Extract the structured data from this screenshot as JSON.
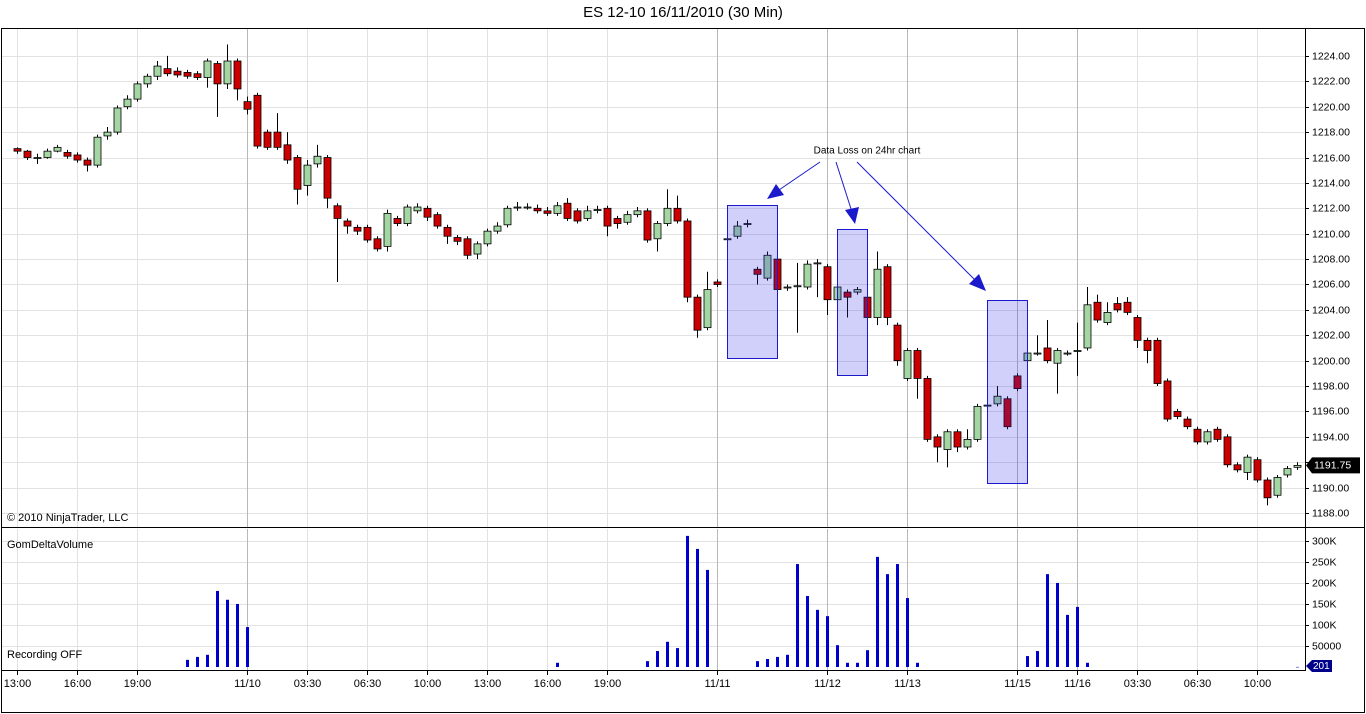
{
  "chart_data": [
    {
      "type": "candlestick",
      "title": "ES 12-10  16/11/2010 (30 Min)",
      "annotation": "Data Loss on 24hr chart",
      "copyright": "© 2010 NinjaTrader, LLC",
      "up_color": "#a4d6a4",
      "down_color": "#cc0000",
      "grid": true,
      "categories": [
        "13:00",
        null,
        null,
        null,
        null,
        null,
        "16:00",
        null,
        null,
        null,
        null,
        null,
        "19:00",
        null,
        null,
        null,
        null,
        null,
        null,
        null,
        null,
        null,
        null,
        "11/10",
        null,
        null,
        null,
        null,
        null,
        "03:30",
        null,
        null,
        null,
        null,
        null,
        "06:30",
        null,
        null,
        null,
        null,
        null,
        "10:00",
        null,
        null,
        null,
        null,
        null,
        "13:00",
        null,
        null,
        null,
        null,
        null,
        "16:00",
        null,
        null,
        null,
        null,
        null,
        "19:00",
        null,
        null,
        null,
        null,
        null,
        null,
        null,
        null,
        null,
        null,
        "11/11",
        null,
        null,
        null,
        null,
        null,
        null,
        null,
        null,
        null,
        null,
        "11/12",
        null,
        null,
        null,
        null,
        null,
        null,
        null,
        "11/13",
        null,
        null,
        null,
        null,
        null,
        null,
        null,
        null,
        null,
        null,
        "11/15",
        null,
        null,
        null,
        null,
        null,
        "11/16",
        null,
        null,
        null,
        null,
        null,
        "03:30",
        null,
        null,
        null,
        null,
        null,
        "06:30",
        null,
        null,
        null,
        null,
        null,
        "10:00",
        null,
        null,
        null,
        null
      ],
      "open": [
        1216.7,
        1216.5,
        1216.0,
        1216.0,
        1216.5,
        1216.4,
        1216.2,
        1215.8,
        1215.4,
        1217.7,
        1218.0,
        1220.0,
        1220.6,
        1221.8,
        1222.4,
        1223.0,
        1222.8,
        1222.7,
        1222.6,
        1222.3,
        1223.4,
        1221.8,
        1223.6,
        1220.4,
        1220.9,
        1218.0,
        1218.0,
        1217.0,
        1216.0,
        1213.8,
        1215.5,
        1216.0,
        1212.2,
        1211.0,
        1210.5,
        1210.5,
        1209.6,
        1209.0,
        1211.2,
        1210.8,
        1211.8,
        1212.0,
        1211.5,
        1210.5,
        1209.7,
        1209.6,
        1208.4,
        1209.2,
        1210.2,
        1210.7,
        1212.1,
        1212.1,
        1212.0,
        1211.8,
        1211.6,
        1212.4,
        1211.8,
        1211.2,
        1211.9,
        1212.0,
        1211.2,
        1210.9,
        1211.5,
        1211.8,
        1209.6,
        1210.8,
        1212.0,
        1211.0,
        1205.0,
        1202.6,
        1206.2,
        1209.6,
        1209.8,
        1210.8,
        1207.2,
        1206.5,
        1208.0,
        1205.8,
        1205.9,
        1205.8,
        1207.7,
        1207.4,
        1204.8,
        1205.4,
        1205.4,
        1205.0,
        1203.4,
        1207.4,
        1202.8,
        1198.6,
        1200.8,
        1198.6,
        1194.0,
        1193.0,
        1194.4,
        1193.2,
        1193.8,
        1196.5,
        1196.6,
        1197.0,
        1198.8,
        1200.0,
        1200.6,
        1201.0,
        1199.8,
        1200.6,
        1200.8,
        1201.0,
        1204.6,
        1203.0,
        1204.5,
        1204.6,
        1203.4,
        1201.6,
        1201.6,
        1198.4,
        1196.0,
        1195.4,
        1194.6,
        1193.6,
        1194.6,
        1194.0,
        1191.8,
        1191.2,
        1192.2,
        1190.6,
        1189.4,
        1191.0,
        1191.6
      ],
      "high": [
        1216.8,
        1216.6,
        1216.3,
        1216.7,
        1217.0,
        1216.6,
        1216.4,
        1216.0,
        1217.8,
        1218.4,
        1220.1,
        1220.9,
        1222.0,
        1222.6,
        1223.6,
        1224.0,
        1223.1,
        1222.9,
        1222.8,
        1223.8,
        1223.6,
        1224.9,
        1223.8,
        1220.8,
        1221.1,
        1218.2,
        1219.5,
        1218.0,
        1216.2,
        1215.8,
        1217.0,
        1216.2,
        1212.4,
        1211.2,
        1210.7,
        1210.7,
        1209.8,
        1211.9,
        1211.4,
        1212.3,
        1212.4,
        1212.2,
        1211.7,
        1210.7,
        1209.9,
        1209.8,
        1209.4,
        1210.4,
        1210.9,
        1212.2,
        1212.5,
        1212.4,
        1212.3,
        1212.1,
        1212.5,
        1212.8,
        1212.0,
        1212.2,
        1212.2,
        1212.2,
        1211.4,
        1211.8,
        1212.1,
        1212.0,
        1211.0,
        1213.5,
        1213.0,
        1211.2,
        1205.2,
        1207.0,
        1206.4,
        1209.8,
        1211.0,
        1211.1,
        1207.4,
        1208.6,
        1208.2,
        1206.0,
        1207.7,
        1207.9,
        1208.0,
        1207.6,
        1206.1,
        1205.6,
        1205.8,
        1205.2,
        1208.6,
        1207.6,
        1203.0,
        1201.0,
        1201.0,
        1198.8,
        1194.2,
        1194.6,
        1194.6,
        1194.6,
        1196.6,
        1196.7,
        1198.0,
        1197.2,
        1199.0,
        1200.8,
        1202.0,
        1203.2,
        1201.0,
        1200.8,
        1203.0,
        1205.8,
        1205.2,
        1204.6,
        1205.0,
        1205.0,
        1203.6,
        1201.8,
        1201.8,
        1198.6,
        1196.2,
        1195.6,
        1194.8,
        1194.6,
        1194.8,
        1194.2,
        1192.0,
        1192.6,
        1192.4,
        1190.8,
        1191.0,
        1191.7,
        1192.0
      ],
      "low": [
        1216.3,
        1215.8,
        1215.5,
        1215.9,
        1216.4,
        1215.9,
        1215.6,
        1214.9,
        1215.2,
        1217.4,
        1217.8,
        1219.8,
        1220.4,
        1221.5,
        1222.1,
        1222.4,
        1222.3,
        1222.2,
        1222.1,
        1221.5,
        1219.2,
        1221.4,
        1220.5,
        1219.4,
        1216.7,
        1216.6,
        1216.6,
        1215.5,
        1212.3,
        1213.0,
        1215.2,
        1212.0,
        1206.2,
        1210.0,
        1209.9,
        1209.3,
        1208.6,
        1208.6,
        1210.6,
        1210.6,
        1211.6,
        1211.0,
        1210.4,
        1209.2,
        1209.1,
        1208.0,
        1208.0,
        1209.0,
        1210.0,
        1210.5,
        1211.8,
        1211.9,
        1211.6,
        1211.4,
        1211.4,
        1211.0,
        1210.8,
        1211.0,
        1211.6,
        1209.8,
        1210.4,
        1210.7,
        1211.3,
        1209.3,
        1208.6,
        1210.6,
        1210.8,
        1204.6,
        1201.8,
        1202.4,
        1205.8,
        1209.4,
        1209.6,
        1210.5,
        1206.0,
        1206.3,
        1205.0,
        1205.5,
        1202.2,
        1205.6,
        1205.0,
        1203.6,
        1204.4,
        1203.4,
        1205.2,
        1203.0,
        1202.8,
        1202.8,
        1199.6,
        1198.4,
        1197.0,
        1193.6,
        1192.0,
        1191.6,
        1192.8,
        1193.0,
        1193.6,
        1196.3,
        1196.4,
        1194.6,
        1197.6,
        1199.8,
        1200.4,
        1199.8,
        1197.4,
        1200.4,
        1198.8,
        1200.8,
        1203.0,
        1202.8,
        1203.8,
        1203.6,
        1201.0,
        1199.8,
        1198.0,
        1195.2,
        1195.4,
        1194.6,
        1193.4,
        1193.4,
        1193.6,
        1191.6,
        1191.2,
        1190.6,
        1190.4,
        1188.6,
        1189.2,
        1190.8,
        1191.4
      ],
      "close": [
        1216.5,
        1216.0,
        1216.0,
        1216.5,
        1216.8,
        1216.1,
        1215.8,
        1215.4,
        1217.6,
        1218.0,
        1219.9,
        1220.6,
        1221.8,
        1222.4,
        1223.2,
        1222.6,
        1222.5,
        1222.4,
        1222.3,
        1223.6,
        1221.8,
        1223.6,
        1221.4,
        1219.8,
        1216.9,
        1216.8,
        1216.8,
        1215.8,
        1213.5,
        1215.4,
        1216.1,
        1212.8,
        1211.2,
        1210.6,
        1210.2,
        1209.5,
        1208.8,
        1211.6,
        1210.8,
        1212.1,
        1212.1,
        1211.3,
        1210.6,
        1209.8,
        1209.4,
        1208.3,
        1209.2,
        1210.2,
        1210.6,
        1212.0,
        1212.1,
        1212.1,
        1211.8,
        1211.6,
        1212.2,
        1211.2,
        1211.0,
        1211.8,
        1211.9,
        1210.6,
        1210.8,
        1211.5,
        1211.8,
        1209.5,
        1210.8,
        1212.0,
        1211.0,
        1205.0,
        1202.4,
        1205.6,
        1206.0,
        1209.6,
        1210.6,
        1210.8,
        1206.8,
        1208.3,
        1205.6,
        1205.8,
        1205.9,
        1207.6,
        1207.7,
        1204.8,
        1205.8,
        1205.0,
        1205.6,
        1203.4,
        1207.2,
        1203.4,
        1200.0,
        1200.8,
        1198.6,
        1193.8,
        1193.2,
        1194.4,
        1193.2,
        1193.8,
        1196.4,
        1196.5,
        1197.2,
        1194.8,
        1197.8,
        1200.6,
        1200.6,
        1200.0,
        1200.8,
        1200.6,
        1200.8,
        1204.4,
        1203.2,
        1203.8,
        1204.0,
        1203.8,
        1201.6,
        1200.8,
        1198.2,
        1195.4,
        1195.6,
        1194.8,
        1193.6,
        1194.4,
        1193.8,
        1191.8,
        1191.4,
        1192.4,
        1190.6,
        1189.2,
        1190.8,
        1191.5,
        1191.75
      ],
      "ylim": [
        1186.9,
        1226.2
      ],
      "yticks": [
        {
          "value": 1188,
          "label": "1188.00"
        },
        {
          "value": 1190,
          "label": "1190.00"
        },
        {
          "value": 1192,
          "label": "1192.00"
        },
        {
          "value": 1194,
          "label": "1194.00"
        },
        {
          "value": 1196,
          "label": "1196.00"
        },
        {
          "value": 1198,
          "label": "1198.00"
        },
        {
          "value": 1200,
          "label": "1200.00"
        },
        {
          "value": 1202,
          "label": "1202.00"
        },
        {
          "value": 1204,
          "label": "1204.00"
        },
        {
          "value": 1206,
          "label": "1206.00"
        },
        {
          "value": 1208,
          "label": "1208.00"
        },
        {
          "value": 1210,
          "label": "1210.00"
        },
        {
          "value": 1212,
          "label": "1212.00"
        },
        {
          "value": 1214,
          "label": "1214.00"
        },
        {
          "value": 1216,
          "label": "1216.00"
        },
        {
          "value": 1218,
          "label": "1218.00"
        },
        {
          "value": 1220,
          "label": "1220.00"
        },
        {
          "value": 1222,
          "label": "1222.00"
        },
        {
          "value": 1224,
          "label": "1224.00"
        }
      ]
    },
    {
      "type": "bar",
      "title": "GomDeltaVolume",
      "status": "Recording OFF",
      "color": "#0000cc",
      "grid": true,
      "values": [
        null,
        null,
        null,
        null,
        null,
        null,
        null,
        null,
        null,
        null,
        null,
        null,
        null,
        null,
        null,
        null,
        null,
        17000,
        24000,
        29000,
        181000,
        160000,
        150000,
        95000,
        null,
        null,
        null,
        null,
        null,
        null,
        null,
        null,
        null,
        null,
        null,
        null,
        null,
        null,
        null,
        null,
        null,
        null,
        null,
        null,
        null,
        null,
        null,
        null,
        null,
        null,
        null,
        null,
        null,
        null,
        10000,
        null,
        null,
        null,
        null,
        null,
        null,
        null,
        null,
        14000,
        38000,
        60000,
        45000,
        312000,
        281000,
        231000,
        null,
        null,
        null,
        null,
        14000,
        19000,
        24000,
        29000,
        245000,
        169000,
        136000,
        121000,
        52000,
        10000,
        10000,
        40000,
        262000,
        221000,
        245000,
        164000,
        10000,
        null,
        null,
        null,
        null,
        null,
        null,
        null,
        null,
        null,
        null,
        26000,
        38000,
        221000,
        200000,
        124000,
        143000,
        10000,
        null,
        null,
        null,
        null,
        null,
        null,
        null,
        null,
        null,
        null,
        null,
        null,
        null,
        null,
        null,
        null,
        null,
        null,
        null,
        null,
        201
      ],
      "ylim": [
        0,
        326000
      ],
      "yticks": [
        50000,
        {
          "value": 100000,
          "label": "100K"
        },
        {
          "value": 150000,
          "label": "150K"
        },
        {
          "value": 200000,
          "label": "200K"
        },
        {
          "value": 250000,
          "label": "250K"
        },
        {
          "value": 300000,
          "label": "300K"
        }
      ]
    }
  ]
}
